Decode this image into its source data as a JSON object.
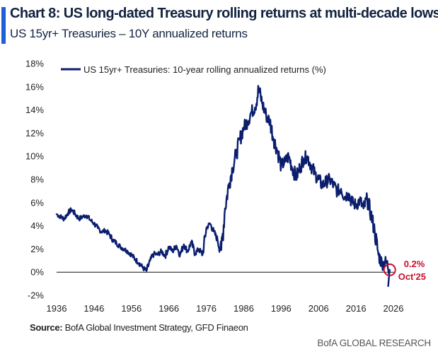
{
  "header": {
    "title": "Chart 8: US long-dated Treasury rolling returns at multi-decade lows",
    "subtitle": "US 15yr+ Treasuries – 10Y annualized returns"
  },
  "footer": {
    "source_label": "Source:",
    "source_text": "BofA Global Investment Strategy, GFD Finaeon",
    "brand": "BofA GLOBAL RESEARCH"
  },
  "colors": {
    "series": "#0b1e6e",
    "highlight": "#c8102e",
    "accent": "#1f5fd6"
  },
  "chart_data": {
    "type": "line",
    "xlabel": "",
    "ylabel": "",
    "xlim": [
      1936,
      2026
    ],
    "ylim": [
      -2,
      18
    ],
    "xticks": [
      "1936",
      "1946",
      "1956",
      "1966",
      "1976",
      "1986",
      "1996",
      "2006",
      "2016",
      "2026"
    ],
    "yticks": [
      "18%",
      "16%",
      "14%",
      "12%",
      "10%",
      "8%",
      "6%",
      "4%",
      "2%",
      "0%",
      "-2%"
    ],
    "legend": {
      "position": "top-left",
      "label": "US 15yr+ Treasuries: 10-year rolling annualized returns (%)"
    },
    "series": [
      {
        "name": "US 15yr+ Treasuries: 10-year rolling annualized returns (%)",
        "x": [
          1936,
          1937,
          1938,
          1939,
          1940,
          1941,
          1942,
          1943,
          1944,
          1945,
          1946,
          1947,
          1948,
          1949,
          1950,
          1951,
          1952,
          1953,
          1954,
          1955,
          1956,
          1957,
          1958,
          1959,
          1960,
          1961,
          1962,
          1963,
          1964,
          1965,
          1966,
          1967,
          1968,
          1969,
          1970,
          1971,
          1972,
          1973,
          1974,
          1975,
          1976,
          1977,
          1978,
          1979,
          1980,
          1981,
          1982,
          1983,
          1984,
          1985,
          1986,
          1987,
          1988,
          1989,
          1990,
          1991,
          1992,
          1993,
          1994,
          1995,
          1996,
          1997,
          1998,
          1999,
          2000,
          2001,
          2002,
          2003,
          2004,
          2005,
          2006,
          2007,
          2008,
          2009,
          2010,
          2011,
          2012,
          2013,
          2014,
          2015,
          2016,
          2017,
          2018,
          2019,
          2020,
          2021,
          2022,
          2023,
          2024,
          2025
        ],
        "values": [
          5.0,
          4.8,
          4.6,
          5.1,
          5.4,
          5.0,
          4.6,
          4.8,
          4.9,
          4.5,
          4.2,
          3.8,
          3.5,
          3.6,
          3.3,
          2.8,
          2.5,
          2.2,
          2.0,
          1.8,
          1.5,
          1.1,
          0.8,
          0.4,
          0.1,
          1.0,
          1.6,
          1.5,
          1.8,
          1.4,
          2.2,
          1.8,
          2.3,
          1.5,
          2.4,
          1.8,
          2.6,
          1.6,
          2.0,
          1.5,
          3.8,
          4.2,
          3.5,
          2.8,
          1.9,
          5.5,
          7.5,
          9.0,
          10.2,
          11.5,
          12.5,
          13.0,
          13.8,
          14.2,
          15.8,
          14.5,
          13.5,
          13.0,
          11.5,
          10.5,
          9.2,
          9.5,
          10.0,
          9.0,
          8.2,
          9.0,
          9.8,
          10.0,
          9.2,
          8.5,
          8.0,
          7.5,
          7.8,
          8.0,
          7.5,
          7.0,
          7.2,
          6.5,
          6.8,
          6.0,
          5.8,
          6.2,
          5.5,
          6.3,
          5.0,
          3.5,
          1.5,
          0.7,
          0.9,
          0.2
        ]
      }
    ],
    "annotations": [
      {
        "x": 2025,
        "y": 0.2,
        "value_text": "0.2%",
        "date_text": "Oct'25"
      }
    ]
  }
}
